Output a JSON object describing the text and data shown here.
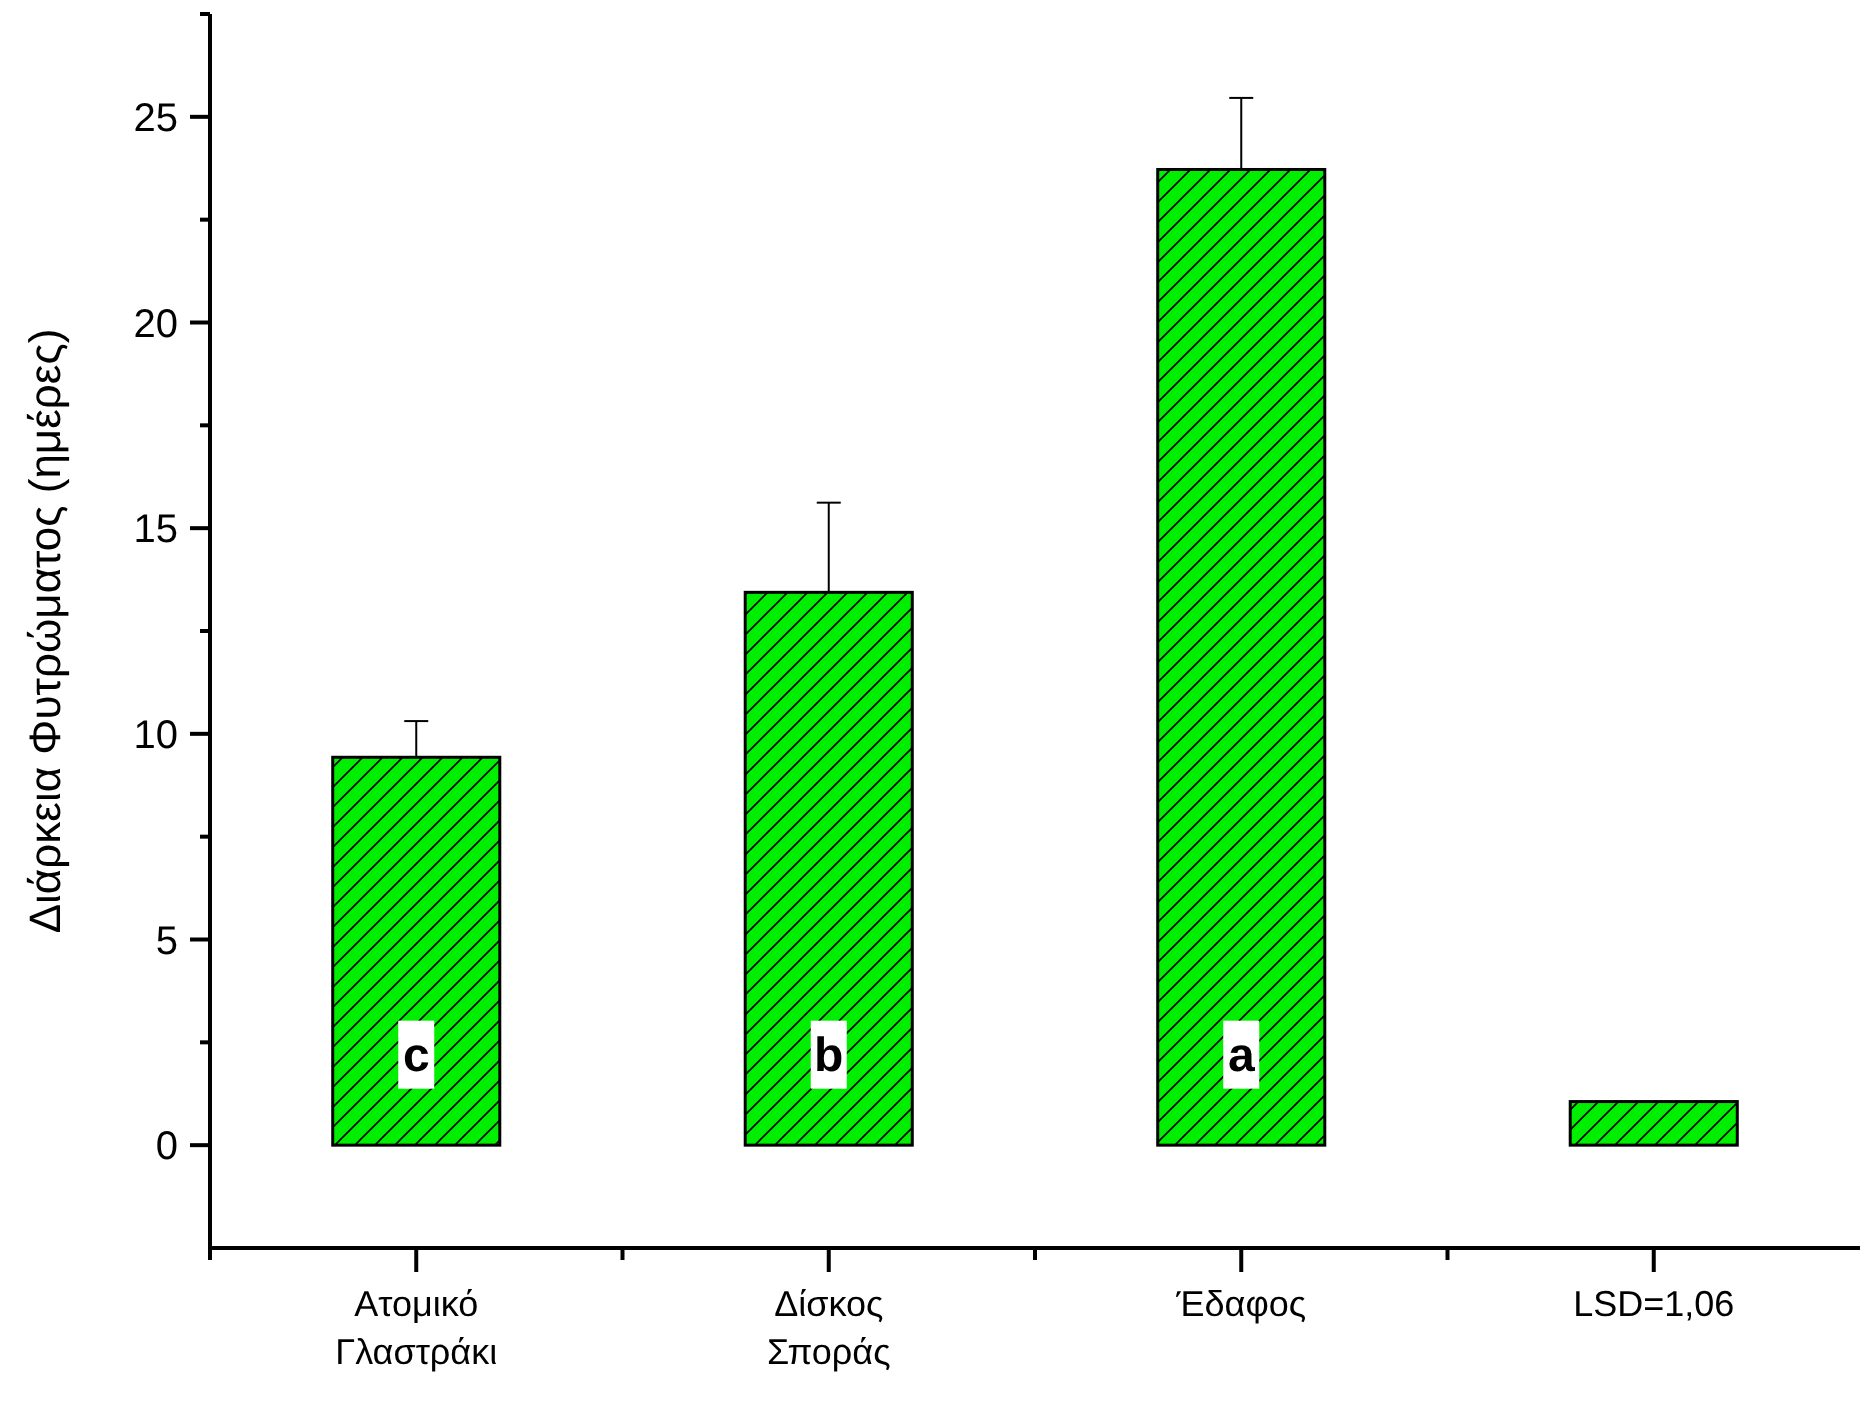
{
  "chart_data": {
    "type": "bar",
    "ylabel": "Διάρκεια Φυτρώματος (ημέρες)",
    "categories": [
      "Ατομικό Γλαστράκι",
      "Δίσκος Σποράς",
      "Έδαφος",
      "LSD=1,06"
    ],
    "values": [
      9.43,
      13.44,
      23.72,
      1.06
    ],
    "errors": [
      [
        9.43,
        10.31
      ],
      [
        13.44,
        15.62
      ],
      [
        23.72,
        25.46
      ],
      null
    ],
    "color": "#00ee00",
    "ylim": [
      -2.5,
      27.5
    ],
    "yticks": [
      0,
      5,
      10,
      15,
      20,
      25
    ],
    "annotations": [
      {
        "text": "c",
        "x": "Ατομικό Γλαστράκι",
        "y": 2.2
      },
      {
        "text": "b",
        "x": "Δίσκος Σποράς",
        "y": 2.2
      },
      {
        "text": "a",
        "x": "Έδαφος",
        "y": 2.2
      }
    ],
    "grid": false
  }
}
